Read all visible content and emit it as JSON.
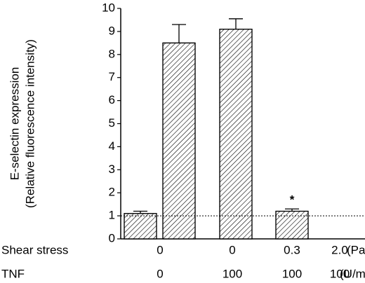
{
  "chart_data": {
    "type": "bar",
    "y_label": [
      "E-selectin expression",
      "(Relative fluorescence intensity)"
    ],
    "values": [
      1.1,
      8.5,
      9.1,
      1.2
    ],
    "errors": [
      0.1,
      0.8,
      0.45,
      0.1
    ],
    "value_annotations": [
      null,
      null,
      null,
      "*"
    ],
    "reference_line": 1,
    "category_rows": [
      {
        "label": "Shear stress",
        "values": [
          "0",
          "0",
          "0.3",
          "2.0"
        ],
        "unit": "(Pa)"
      },
      {
        "label": "TNF",
        "values": [
          "0",
          "100",
          "100",
          "100"
        ],
        "unit": "(U/mL)"
      }
    ],
    "ylim": [
      0,
      10
    ],
    "yticks": [
      0,
      1,
      2,
      3,
      4,
      5,
      6,
      7,
      8,
      9,
      10
    ],
    "color": "#ffffff",
    "hatch": true
  }
}
